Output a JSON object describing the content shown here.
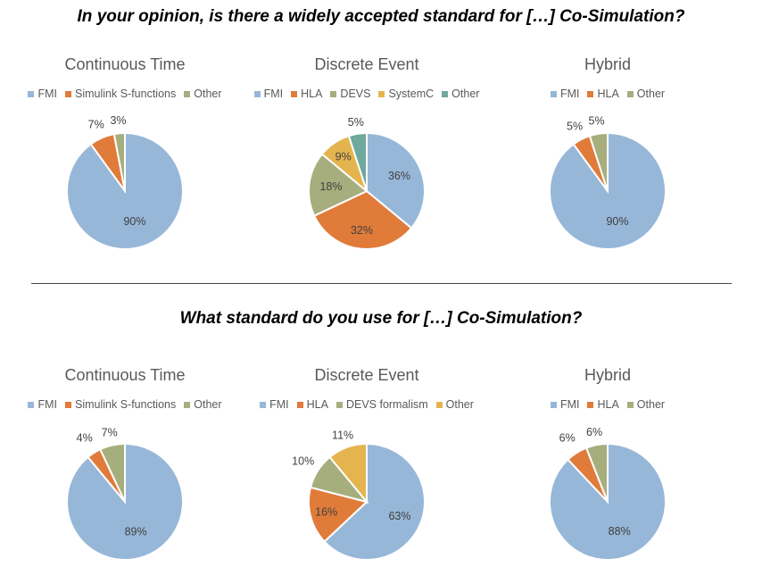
{
  "headings": {
    "top": "In your opinion, is there a widely accepted standard for […] Co-Simulation?",
    "bottom": "What standard do you use for […] Co-Simulation?"
  },
  "colors": {
    "FMI": "#97b7d8",
    "Simulink S-functions": "#e07b3a",
    "HLA": "#e07b3a",
    "DEVS": "#a6ae7e",
    "DEVS formalism": "#a6ae7e",
    "SystemC": "#e4b54e",
    "Other": "#a6ae7e",
    "Other5": "#6fa89c",
    "OtherDE2": "#e4b54e"
  },
  "chart_data": [
    {
      "type": "pie",
      "title": "Continuous Time",
      "labels": [
        "FMI",
        "Simulink S-functions",
        "Other"
      ],
      "values": [
        90,
        7,
        3
      ],
      "colors": [
        "#97b7d8",
        "#e07b3a",
        "#a6ae7e"
      ]
    },
    {
      "type": "pie",
      "title": "Discrete Event",
      "labels": [
        "FMI",
        "HLA",
        "DEVS",
        "SystemC",
        "Other"
      ],
      "values": [
        36,
        32,
        18,
        9,
        5
      ],
      "colors": [
        "#97b7d8",
        "#e07b3a",
        "#a6ae7e",
        "#e4b54e",
        "#6fa89c"
      ]
    },
    {
      "type": "pie",
      "title": "Hybrid",
      "labels": [
        "FMI",
        "HLA",
        "Other"
      ],
      "values": [
        90,
        5,
        5
      ],
      "colors": [
        "#97b7d8",
        "#e07b3a",
        "#a6ae7e"
      ]
    },
    {
      "type": "pie",
      "title": "Continuous Time",
      "labels": [
        "FMI",
        "Simulink S-functions",
        "Other"
      ],
      "values": [
        89,
        4,
        7
      ],
      "colors": [
        "#97b7d8",
        "#e07b3a",
        "#a6ae7e"
      ]
    },
    {
      "type": "pie",
      "title": "Discrete Event",
      "labels": [
        "FMI",
        "HLA",
        "DEVS formalism",
        "Other"
      ],
      "values": [
        63,
        16,
        10,
        11
      ],
      "colors": [
        "#97b7d8",
        "#e07b3a",
        "#a6ae7e",
        "#e4b54e"
      ]
    },
    {
      "type": "pie",
      "title": "Hybrid",
      "labels": [
        "FMI",
        "HLA",
        "Other"
      ],
      "values": [
        88,
        6,
        6
      ],
      "colors": [
        "#97b7d8",
        "#e07b3a",
        "#a6ae7e"
      ]
    }
  ]
}
